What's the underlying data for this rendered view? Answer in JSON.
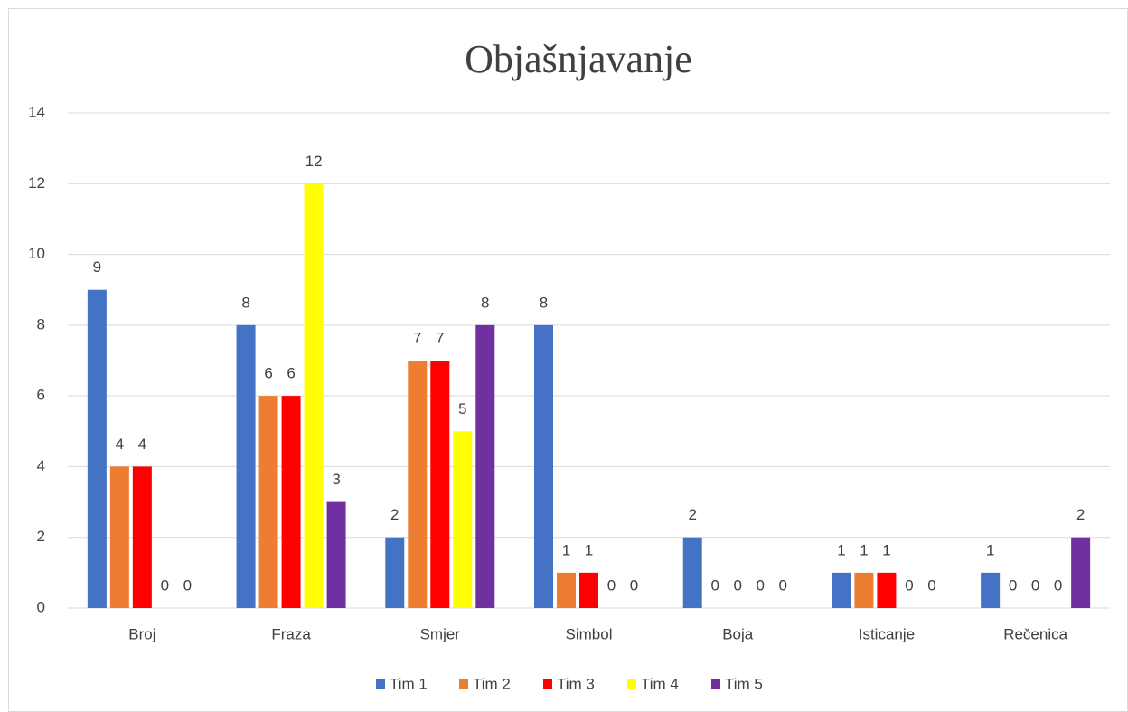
{
  "chart_data": {
    "type": "bar",
    "title": "Objašnjavanje",
    "categories": [
      "Broj",
      "Fraza",
      "Smjer",
      "Simbol",
      "Boja",
      "Isticanje",
      "Rečenica"
    ],
    "series": [
      {
        "name": "Tim 1",
        "color": "#4472c4",
        "values": [
          9,
          8,
          2,
          8,
          2,
          1,
          1
        ]
      },
      {
        "name": "Tim 2",
        "color": "#ed7d31",
        "values": [
          4,
          6,
          7,
          1,
          0,
          1,
          0
        ]
      },
      {
        "name": "Tim 3",
        "color": "#ff0000",
        "values": [
          4,
          6,
          7,
          1,
          0,
          1,
          0
        ]
      },
      {
        "name": "Tim 4",
        "color": "#ffff00",
        "values": [
          0,
          12,
          5,
          0,
          0,
          0,
          0
        ]
      },
      {
        "name": "Tim 5",
        "color": "#7030a0",
        "values": [
          0,
          3,
          8,
          0,
          0,
          0,
          2
        ]
      }
    ],
    "ylim": [
      0,
      14
    ],
    "yticks": [
      0,
      2,
      4,
      6,
      8,
      10,
      12,
      14
    ],
    "grid": true,
    "legend": "bottom"
  }
}
